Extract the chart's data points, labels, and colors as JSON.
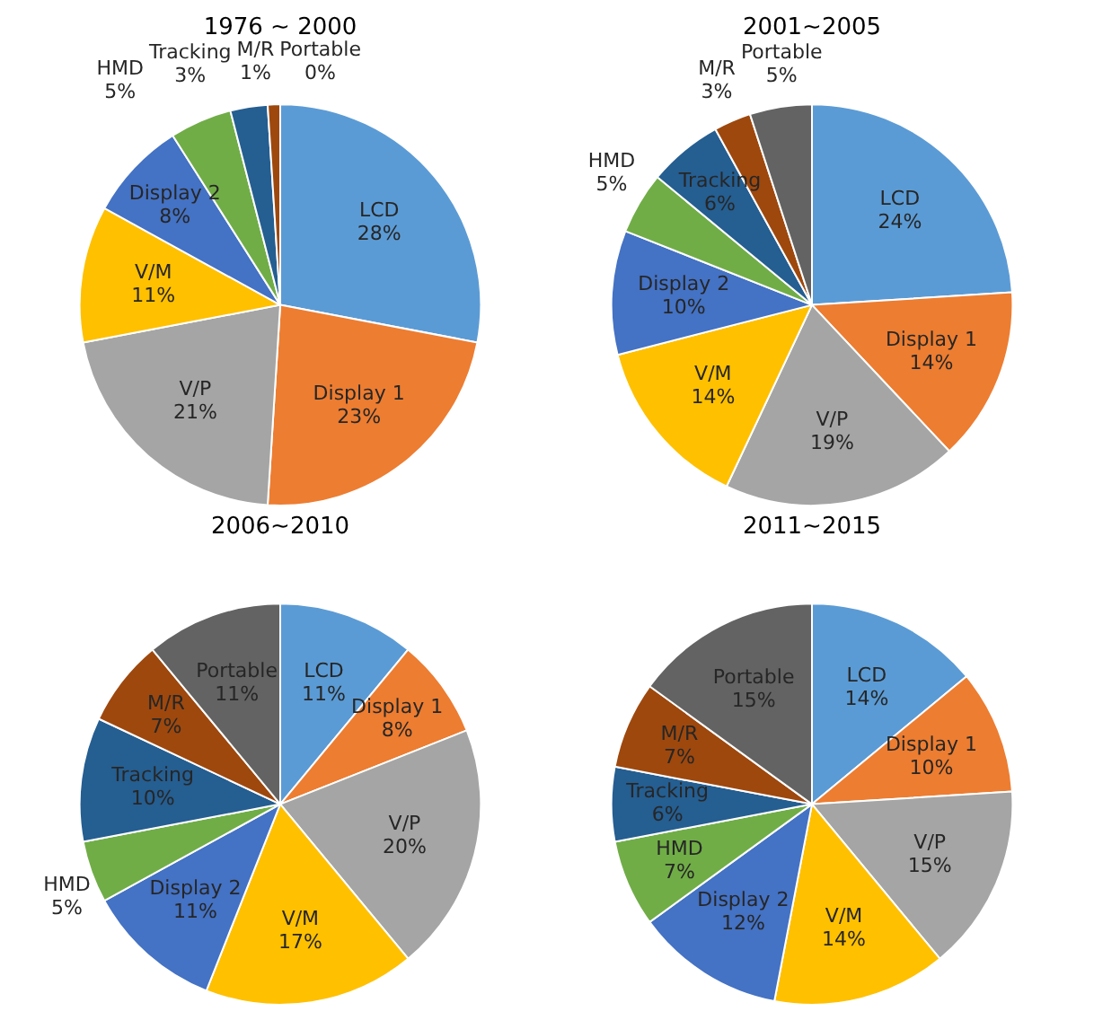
{
  "chart_data": [
    {
      "type": "pie",
      "title": "1976 ~ 2000",
      "categories": [
        "LCD",
        "Display 1",
        "V/P",
        "V/M",
        "Display 2",
        "HMD",
        "Tracking",
        "M/R",
        "Portable"
      ],
      "values": [
        28,
        23,
        21,
        11,
        8,
        5,
        3,
        1,
        0
      ],
      "value_labels": [
        "28%",
        "23%",
        "21%",
        "11%",
        "8%",
        "5%",
        "3%",
        "1%",
        "0%"
      ],
      "colors": [
        "#5b9bd5",
        "#ed7d31",
        "#a5a5a5",
        "#ffc000",
        "#4472c4",
        "#70ad47",
        "#255e91",
        "#9e480e",
        "#636363"
      ]
    },
    {
      "type": "pie",
      "title": "2001~2005",
      "categories": [
        "LCD",
        "Display 1",
        "V/P",
        "V/M",
        "Display 2",
        "HMD",
        "Tracking",
        "M/R",
        "Portable"
      ],
      "values": [
        24,
        14,
        19,
        14,
        10,
        5,
        6,
        3,
        5
      ],
      "value_labels": [
        "24%",
        "14%",
        "19%",
        "14%",
        "10%",
        "5%",
        "6%",
        "3%",
        "5%"
      ],
      "colors": [
        "#5b9bd5",
        "#ed7d31",
        "#a5a5a5",
        "#ffc000",
        "#4472c4",
        "#70ad47",
        "#255e91",
        "#9e480e",
        "#636363"
      ]
    },
    {
      "type": "pie",
      "title": "2006~2010",
      "categories": [
        "LCD",
        "Display 1",
        "V/P",
        "V/M",
        "Display 2",
        "HMD",
        "Tracking",
        "M/R",
        "Portable"
      ],
      "values": [
        11,
        8,
        20,
        17,
        11,
        5,
        10,
        7,
        11
      ],
      "value_labels": [
        "11%",
        "8%",
        "20%",
        "17%",
        "11%",
        "5%",
        "10%",
        "7%",
        "11%"
      ],
      "colors": [
        "#5b9bd5",
        "#ed7d31",
        "#a5a5a5",
        "#ffc000",
        "#4472c4",
        "#70ad47",
        "#255e91",
        "#9e480e",
        "#636363"
      ]
    },
    {
      "type": "pie",
      "title": "2011~2015",
      "categories": [
        "LCD",
        "Display 1",
        "V/P",
        "V/M",
        "Display 2",
        "HMD",
        "Tracking",
        "M/R",
        "Portable"
      ],
      "values": [
        14,
        10,
        15,
        14,
        12,
        7,
        6,
        7,
        15
      ],
      "value_labels": [
        "14%",
        "10%",
        "15%",
        "14%",
        "12%",
        "7%",
        "6%",
        "7%",
        "15%"
      ],
      "colors": [
        "#5b9bd5",
        "#ed7d31",
        "#a5a5a5",
        "#ffc000",
        "#4472c4",
        "#70ad47",
        "#255e91",
        "#9e480e",
        "#636363"
      ]
    }
  ]
}
